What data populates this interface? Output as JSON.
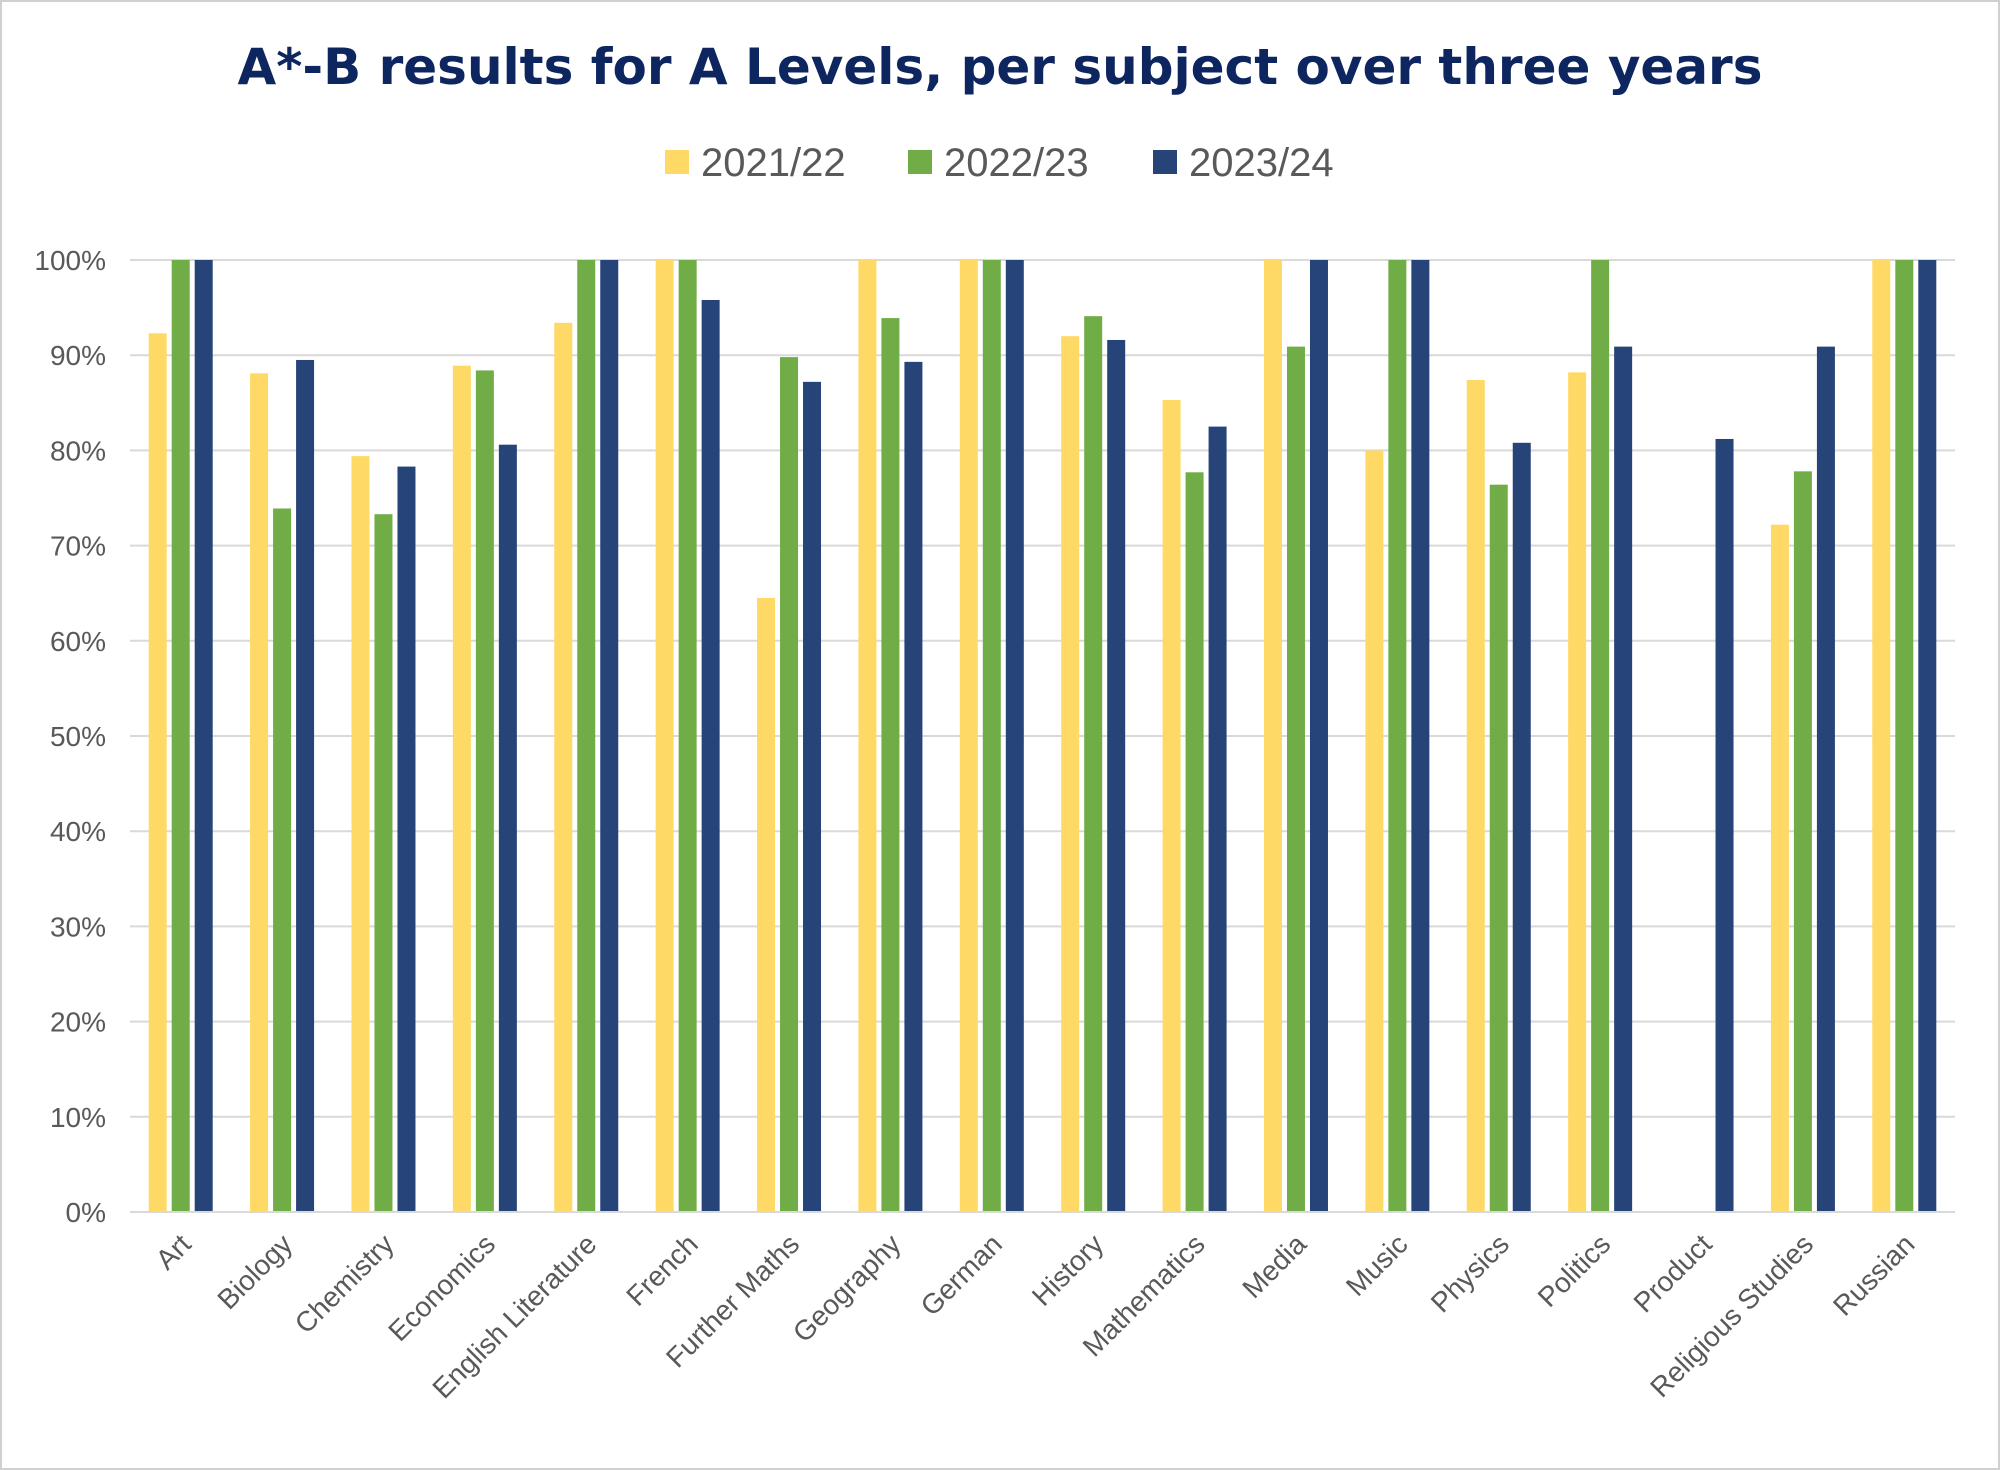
{
  "chart_data": {
    "type": "bar",
    "title": "A*-B results for A Levels, per subject over three years",
    "xlabel": "",
    "ylabel": "",
    "ylim": [
      0,
      100
    ],
    "y_ticks": [
      "0%",
      "10%",
      "20%",
      "30%",
      "40%",
      "50%",
      "60%",
      "70%",
      "80%",
      "90%",
      "100%"
    ],
    "grid": true,
    "legend_position": "top",
    "categories": [
      "Art",
      "Biology",
      "Chemistry",
      "Economics",
      "English Literature",
      "French",
      "Further Maths",
      "Geography",
      "German",
      "History",
      "Mathematics",
      "Media",
      "Music",
      "Physics",
      "Politics",
      "Product",
      "Religious Studies",
      "Russian"
    ],
    "series": [
      {
        "name": "2021/22",
        "color": "#ffd966",
        "values": [
          92.3,
          88.1,
          79.4,
          88.9,
          93.4,
          100,
          64.5,
          100,
          100,
          92.0,
          85.3,
          100,
          80.0,
          87.4,
          88.2,
          null,
          72.2,
          100
        ]
      },
      {
        "name": "2022/23",
        "color": "#70ad47",
        "values": [
          100,
          73.9,
          73.3,
          88.4,
          100,
          100,
          89.8,
          93.9,
          100,
          94.1,
          77.7,
          90.9,
          100,
          76.4,
          100,
          null,
          77.8,
          100
        ]
      },
      {
        "name": "2023/24",
        "color": "#264478",
        "values": [
          100,
          89.5,
          78.3,
          80.6,
          100,
          95.8,
          87.2,
          89.3,
          100,
          91.6,
          82.5,
          100,
          100,
          80.8,
          90.9,
          81.2,
          90.9,
          100
        ]
      }
    ]
  }
}
